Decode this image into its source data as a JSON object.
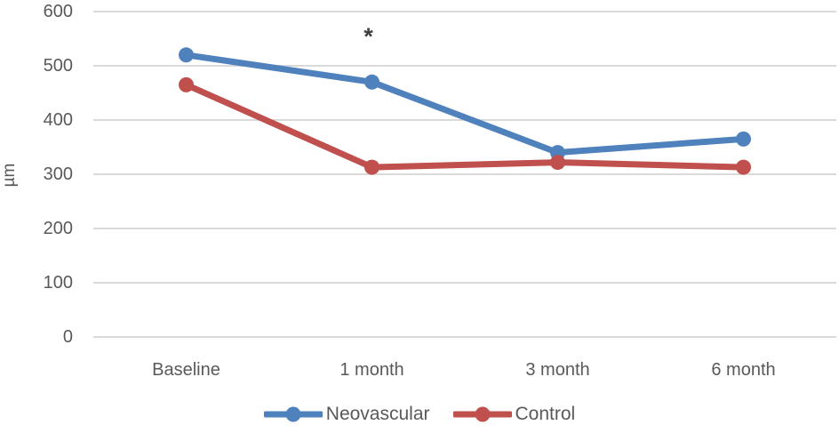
{
  "chart_data": {
    "type": "line",
    "title": "",
    "xlabel": "",
    "ylabel": "µm",
    "categories": [
      "Baseline",
      "1 month",
      "3 month",
      "6 month"
    ],
    "series": [
      {
        "name": "Neovascular",
        "color": "#4F81BD",
        "values": [
          520,
          470,
          340,
          365
        ]
      },
      {
        "name": "Control",
        "color": "#C0504D",
        "values": [
          465,
          313,
          322,
          313
        ]
      }
    ],
    "ylim": [
      0,
      600
    ],
    "yticks": [
      0,
      100,
      200,
      300,
      400,
      500,
      600
    ],
    "grid": "horizontal-only",
    "legend_position": "bottom-center",
    "annotations": [
      {
        "text": "*",
        "category_index": 1,
        "near_series": "Neovascular"
      }
    ]
  },
  "colors": {
    "gridline": "#D9D9D9",
    "axis_text": "#595959",
    "annotation_text": "#404040",
    "background": "#FFFFFF"
  }
}
